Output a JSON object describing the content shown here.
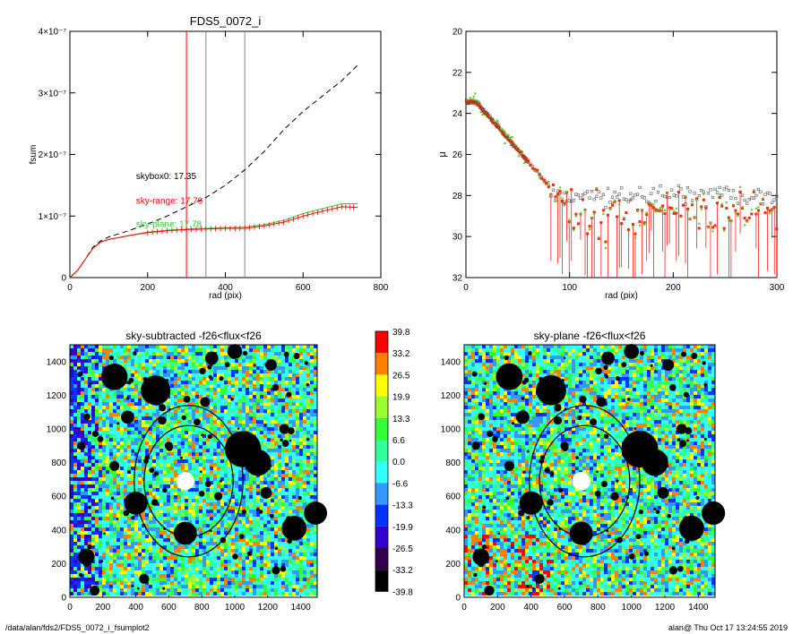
{
  "footer": {
    "left": "/data/alan/fds2/FDS5_0072_i_fsumplot2",
    "right": "alan@  Thu Oct 17 13:24:55 2019"
  },
  "colorbar": {
    "ticks": [
      "39.8",
      "33.2",
      "26.5",
      "19.9",
      "13.3",
      "6.6",
      "0.0",
      "-6.6",
      "-13.3",
      "-19.9",
      "-26.5",
      "-33.2",
      "-39.8"
    ],
    "colors": [
      "#ff0000",
      "#ff8000",
      "#ffff00",
      "#99ff33",
      "#33ff33",
      "#33ff99",
      "#33ffff",
      "#3399ff",
      "#0033ff",
      "#3300cc",
      "#33004d",
      "#000000"
    ]
  },
  "chart_data": [
    {
      "id": "growth",
      "type": "line",
      "title": "FDS5_0072_i",
      "xlabel": "rad (pix)",
      "ylabel": "fsum",
      "xlim": [
        0,
        800
      ],
      "ylim": [
        0,
        4e-07
      ],
      "xticks": [
        0,
        200,
        400,
        600,
        800
      ],
      "yticks": [
        {
          "value": 0,
          "label": "0"
        },
        {
          "value": 1e-07,
          "label": "1×10⁻⁷"
        },
        {
          "value": 2e-07,
          "label": "2×10⁻⁷"
        },
        {
          "value": 3e-07,
          "label": "3×10⁻⁷"
        },
        {
          "value": 4e-07,
          "label": "4×10⁻⁷"
        }
      ],
      "vlines": [
        {
          "x": 300,
          "color": "#ff0000"
        },
        {
          "x": 350,
          "color": "#888888"
        },
        {
          "x": 450,
          "color": "#888888"
        }
      ],
      "annotations": [
        {
          "text": "skybox0: 17.35",
          "color": "#000000",
          "x": 170,
          "y": 1.6e-07
        },
        {
          "text": "sky-range: 17.79",
          "color": "#ff0000",
          "x": 170,
          "y": 1.2e-07
        },
        {
          "text": "sky-plane: 17.78",
          "color": "#33cc33",
          "x": 170,
          "y": 8.2e-08
        }
      ],
      "series": [
        {
          "color": "#000000",
          "dash": true,
          "x": [
            0,
            20,
            40,
            60,
            80,
            100,
            150,
            200,
            250,
            300,
            350,
            400,
            450,
            500,
            550,
            600,
            650,
            700,
            740
          ],
          "y": [
            0,
            1.2e-08,
            3e-08,
            5e-08,
            6e-08,
            6.6e-08,
            7.6e-08,
            8.7e-08,
            1e-07,
            1.15e-07,
            1.3e-07,
            1.5e-07,
            1.75e-07,
            2.05e-07,
            2.4e-07,
            2.7e-07,
            2.95e-07,
            3.2e-07,
            3.45e-07
          ]
        },
        {
          "color": "#33cc33",
          "dash": false,
          "x": [
            0,
            20,
            40,
            60,
            80,
            100,
            150,
            200,
            250,
            300,
            350,
            400,
            450,
            500,
            550,
            600,
            650,
            700,
            740
          ],
          "y": [
            0,
            1.2e-08,
            3e-08,
            4.8e-08,
            5.8e-08,
            6.2e-08,
            6.8e-08,
            7.4e-08,
            7.7e-08,
            7.9e-08,
            8e-08,
            8.1e-08,
            8.2e-08,
            8.6e-08,
            9.3e-08,
            1.04e-07,
            1.12e-07,
            1.2e-07,
            1.2e-07
          ]
        },
        {
          "color": "#ff0000",
          "dash": false,
          "errorbars": true,
          "x": [
            0,
            20,
            40,
            60,
            80,
            100,
            150,
            200,
            250,
            300,
            350,
            400,
            450,
            500,
            550,
            600,
            650,
            700,
            740
          ],
          "y": [
            0,
            1.2e-08,
            3e-08,
            4.8e-08,
            5.8e-08,
            6.2e-08,
            6.8e-08,
            7.3e-08,
            7.6e-08,
            7.8e-08,
            7.9e-08,
            8e-08,
            8e-08,
            8.4e-08,
            9e-08,
            1e-07,
            1.08e-07,
            1.15e-07,
            1.14e-07
          ]
        }
      ]
    },
    {
      "id": "profile",
      "type": "scatter",
      "title": "",
      "xlabel": "rad (pix)",
      "ylabel": "μ",
      "xlim": [
        0,
        300
      ],
      "ylim": [
        32,
        20
      ],
      "xticks": [
        0,
        100,
        200,
        300
      ],
      "yticks": [
        20,
        22,
        24,
        26,
        28,
        30,
        32
      ],
      "profile_model": {
        "plateau_until": 10,
        "mu0": 23.45,
        "slope": 0.058,
        "gray_floor": 28.0,
        "red_floor_mean": 28.8,
        "break_radius": 80
      }
    },
    {
      "id": "map_left",
      "type": "heatmap",
      "title": "sky-subtracted -f26<flux<f26",
      "xlim": [
        0,
        1500
      ],
      "ylim": [
        0,
        1500
      ],
      "xticks": [
        0,
        200,
        400,
        600,
        800,
        1000,
        1200,
        1400
      ],
      "yticks": [
        0,
        200,
        400,
        600,
        800,
        1000,
        1200,
        1400
      ],
      "blue_gradient": true,
      "masks": [
        {
          "x": 270,
          "y": 1310,
          "r": 80
        },
        {
          "x": 520,
          "y": 1230,
          "r": 90
        },
        {
          "x": 1050,
          "y": 880,
          "r": 110
        },
        {
          "x": 1140,
          "y": 800,
          "r": 80
        },
        {
          "x": 400,
          "y": 560,
          "r": 70
        },
        {
          "x": 700,
          "y": 380,
          "r": 70
        },
        {
          "x": 1360,
          "y": 410,
          "r": 75
        },
        {
          "x": 1490,
          "y": 500,
          "r": 70
        },
        {
          "x": 100,
          "y": 240,
          "r": 50
        },
        {
          "x": 1000,
          "y": 1460,
          "r": 45
        },
        {
          "x": 860,
          "y": 1420,
          "r": 40
        },
        {
          "x": 1220,
          "y": 1380,
          "r": 35
        },
        {
          "x": 350,
          "y": 1070,
          "r": 40
        },
        {
          "x": 820,
          "y": 1160,
          "r": 30
        },
        {
          "x": 1190,
          "y": 620,
          "r": 35
        },
        {
          "x": 270,
          "y": 780,
          "r": 30
        },
        {
          "x": 450,
          "y": 110,
          "r": 30
        },
        {
          "x": 150,
          "y": 40,
          "r": 30
        },
        {
          "x": 1250,
          "y": 160,
          "r": 25
        },
        {
          "x": 600,
          "y": 900,
          "r": 25
        },
        {
          "x": 560,
          "y": 1050,
          "r": 25
        },
        {
          "x": 900,
          "y": 600,
          "r": 25
        },
        {
          "x": 1300,
          "y": 1000,
          "r": 30
        },
        {
          "x": 70,
          "y": 900,
          "r": 25
        }
      ],
      "core": {
        "x": 700,
        "y": 690,
        "r": 55
      },
      "ellipses": [
        {
          "x": 720,
          "y": 690,
          "rx": 330,
          "ry": 450
        },
        {
          "x": 720,
          "y": 690,
          "rx": 270,
          "ry": 330
        }
      ]
    },
    {
      "id": "map_right",
      "type": "heatmap",
      "title": "sky-plane -f26<flux<f26",
      "xlim": [
        0,
        1500
      ],
      "ylim": [
        0,
        1500
      ],
      "xticks": [
        0,
        200,
        400,
        600,
        800,
        1000,
        1200,
        1400
      ],
      "yticks": [
        0,
        200,
        400,
        600,
        800,
        1000,
        1200,
        1400
      ],
      "blue_gradient": false,
      "masks": [
        {
          "x": 270,
          "y": 1310,
          "r": 80
        },
        {
          "x": 520,
          "y": 1230,
          "r": 90
        },
        {
          "x": 1050,
          "y": 880,
          "r": 110
        },
        {
          "x": 1140,
          "y": 800,
          "r": 80
        },
        {
          "x": 400,
          "y": 560,
          "r": 70
        },
        {
          "x": 700,
          "y": 380,
          "r": 70
        },
        {
          "x": 1360,
          "y": 410,
          "r": 75
        },
        {
          "x": 1490,
          "y": 500,
          "r": 70
        },
        {
          "x": 100,
          "y": 240,
          "r": 50
        },
        {
          "x": 1000,
          "y": 1460,
          "r": 45
        },
        {
          "x": 860,
          "y": 1420,
          "r": 40
        },
        {
          "x": 1220,
          "y": 1380,
          "r": 35
        },
        {
          "x": 350,
          "y": 1070,
          "r": 40
        },
        {
          "x": 820,
          "y": 1160,
          "r": 30
        },
        {
          "x": 1190,
          "y": 620,
          "r": 35
        },
        {
          "x": 270,
          "y": 780,
          "r": 30
        },
        {
          "x": 450,
          "y": 110,
          "r": 30
        },
        {
          "x": 150,
          "y": 40,
          "r": 30
        },
        {
          "x": 1250,
          "y": 160,
          "r": 25
        },
        {
          "x": 600,
          "y": 900,
          "r": 25
        },
        {
          "x": 560,
          "y": 1050,
          "r": 25
        },
        {
          "x": 900,
          "y": 600,
          "r": 25
        },
        {
          "x": 1300,
          "y": 1000,
          "r": 30
        },
        {
          "x": 70,
          "y": 900,
          "r": 25
        }
      ],
      "core": {
        "x": 700,
        "y": 690,
        "r": 55
      },
      "ellipses": [
        {
          "x": 720,
          "y": 690,
          "rx": 330,
          "ry": 450
        },
        {
          "x": 720,
          "y": 690,
          "rx": 270,
          "ry": 330
        }
      ]
    }
  ]
}
